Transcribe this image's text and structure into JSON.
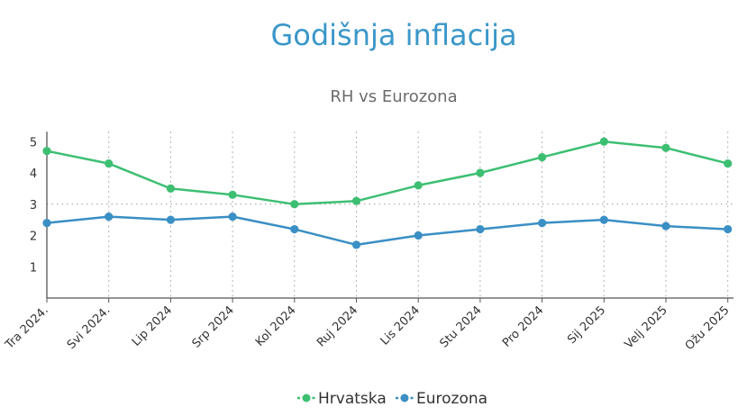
{
  "chart_data": {
    "type": "line",
    "title": "Godišnja inflacija",
    "subtitle": "RH vs Eurozona",
    "categories": [
      "Tra 2024.",
      "Svi 2024.",
      "Lip 2024",
      "Srp 2024",
      "Kol 2024",
      "Ruj 2024",
      "Lis 2024",
      "Stu 2024",
      "Pro 2024",
      "Sij 2025",
      "Velj 2025",
      "Ožu 2025"
    ],
    "series": [
      {
        "name": "Hrvatska",
        "color": "#3dbf72",
        "values": [
          4.7,
          4.3,
          3.5,
          3.3,
          3.0,
          3.1,
          3.6,
          4.0,
          4.5,
          5.0,
          4.8,
          4.3
        ]
      },
      {
        "name": "Eurozona",
        "color": "#3a8fc4",
        "values": [
          2.4,
          2.6,
          2.5,
          2.6,
          2.2,
          1.7,
          2.0,
          2.2,
          2.4,
          2.5,
          2.3,
          2.2
        ]
      }
    ],
    "yticks": [
      "1",
      "2",
      "3",
      "4",
      "5"
    ],
    "ylim": [
      0,
      5.2
    ],
    "grid": "vertical dotted",
    "legend": "bottom-center",
    "xlabel": "",
    "ylabel": ""
  }
}
